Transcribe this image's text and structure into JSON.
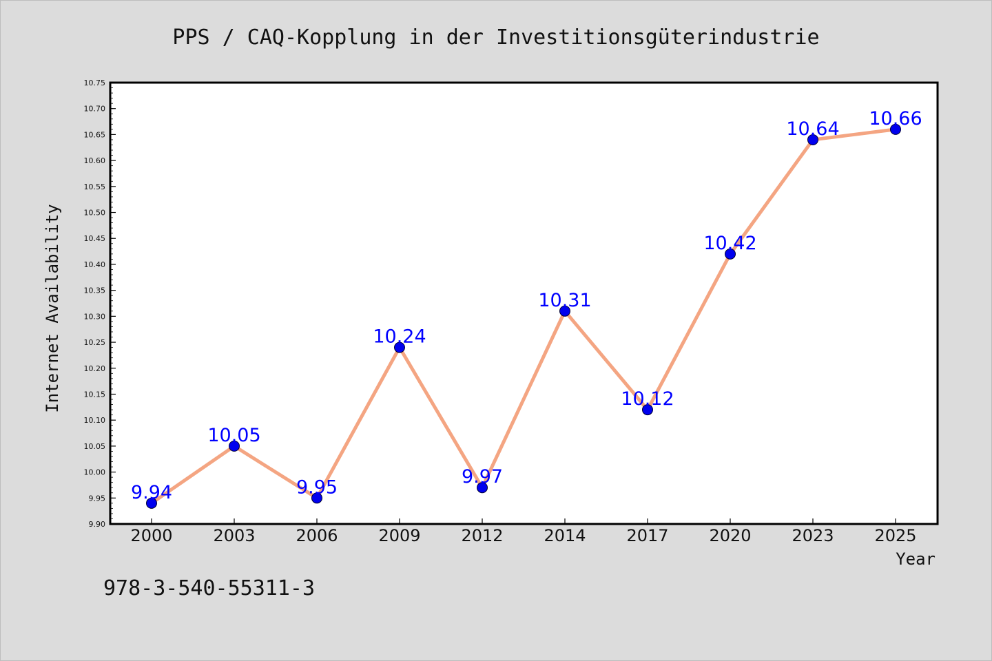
{
  "chart_data": {
    "type": "line",
    "title": "PPS / CAQ-Kopplung in der Investitionsgüterindustrie",
    "xlabel": "Year",
    "ylabel": "Internet Availability",
    "categories": [
      "2000",
      "2003",
      "2006",
      "2009",
      "2012",
      "2014",
      "2017",
      "2020",
      "2023",
      "2025"
    ],
    "series": [
      {
        "values": [
          9.94,
          10.05,
          9.95,
          10.24,
          9.97,
          10.31,
          10.12,
          10.42,
          10.64,
          10.66
        ],
        "labels": [
          "9.94",
          "10.05",
          "9.95",
          "10.24",
          "9.97",
          "10.31",
          "10.12",
          "10.42",
          "10.64",
          "10.66"
        ]
      }
    ],
    "ylim": [
      9.9,
      10.75
    ],
    "yticks": [
      "9.90",
      "9.95",
      "10.00",
      "10.05",
      "10.10",
      "10.15",
      "10.20",
      "10.25",
      "10.30",
      "10.35",
      "10.40",
      "10.45",
      "10.50",
      "10.55",
      "10.60",
      "10.65",
      "10.70",
      "10.75"
    ],
    "grid": false,
    "legend": "none",
    "colors": {
      "line": "#f4a582",
      "marker": "#0000ee",
      "data_label": "#0000ff",
      "background": "#dcdcdc",
      "plot_background": "#ffffff"
    }
  },
  "annotation": "978-3-540-55311-3"
}
